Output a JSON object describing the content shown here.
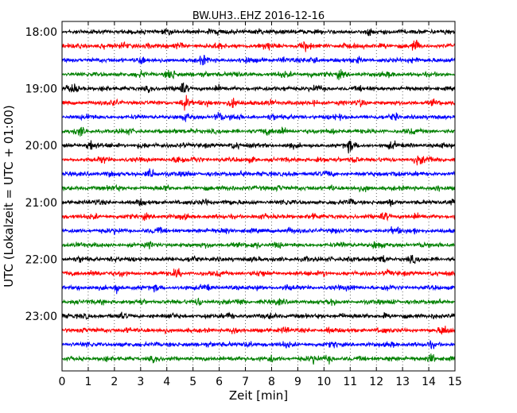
{
  "chart_data": {
    "type": "line",
    "title": "BW.UH3..EHZ 2016-12-16",
    "xlabel": "Zeit  [min]",
    "ylabel": "UTC (Lokalzeit = UTC + 01:00)",
    "xlim": [
      0,
      15
    ],
    "x_ticks": [
      "0",
      "1",
      "2",
      "3",
      "4",
      "5",
      "6",
      "7",
      "8",
      "9",
      "10",
      "11",
      "12",
      "13",
      "14",
      "15"
    ],
    "y_tick_labels": [
      "18:00",
      "19:00",
      "20:00",
      "21:00",
      "22:00",
      "23:00"
    ],
    "grid": "vertical-dotted",
    "trace_colors": [
      "#000000",
      "#ff0000",
      "#0000ff",
      "#008000"
    ],
    "traces": [
      {
        "start": "18:00",
        "bursts": [
          [
            4.0,
            0.6
          ],
          [
            5.6,
            0.5
          ],
          [
            6.0,
            0.6
          ],
          [
            7.5,
            0.7
          ],
          [
            9.2,
            0.4
          ],
          [
            11.7,
            0.6
          ],
          [
            13.0,
            0.7
          ],
          [
            14.7,
            0.6
          ]
        ]
      },
      {
        "start": "18:15",
        "bursts": [
          [
            1.5,
            0.6
          ],
          [
            2.3,
            0.8
          ],
          [
            3.3,
            0.5
          ],
          [
            4.5,
            0.7
          ],
          [
            6.0,
            0.7
          ],
          [
            7.8,
            1.0
          ],
          [
            9.3,
            1.2
          ],
          [
            10.7,
            0.7
          ],
          [
            12.3,
            0.5
          ],
          [
            13.5,
            1.2
          ]
        ]
      },
      {
        "start": "18:30",
        "bursts": [
          [
            3.0,
            1.1
          ],
          [
            5.4,
            1.0
          ],
          [
            7.0,
            0.7
          ],
          [
            8.5,
            0.6
          ],
          [
            9.6,
            1.0
          ],
          [
            11.3,
            0.6
          ],
          [
            13.5,
            0.8
          ]
        ]
      },
      {
        "start": "18:45",
        "bursts": [
          [
            3.0,
            0.6
          ],
          [
            4.15,
            1.6
          ],
          [
            5.5,
            0.6
          ],
          [
            6.7,
            0.5
          ],
          [
            8.5,
            0.6
          ],
          [
            9.5,
            0.6
          ],
          [
            10.6,
            0.8
          ],
          [
            12.5,
            0.5
          ]
        ]
      },
      {
        "start": "19:00",
        "bursts": [
          [
            0.4,
            1.3
          ],
          [
            1.6,
            0.6
          ],
          [
            3.3,
            0.7
          ],
          [
            4.6,
            1.8
          ],
          [
            6.0,
            0.6
          ],
          [
            8.6,
            0.5
          ],
          [
            9.7,
            0.7
          ],
          [
            11.5,
            0.5
          ]
        ]
      },
      {
        "start": "19:15",
        "bursts": [
          [
            2.0,
            0.6
          ],
          [
            4.7,
            2.0
          ],
          [
            5.6,
            0.6
          ],
          [
            6.5,
            1.2
          ],
          [
            8.0,
            0.7
          ],
          [
            9.6,
            0.5
          ],
          [
            11.4,
            0.8
          ],
          [
            14.2,
            0.5
          ]
        ]
      },
      {
        "start": "19:30",
        "bursts": [
          [
            1.0,
            0.6
          ],
          [
            4.8,
            0.8
          ],
          [
            6.0,
            1.2
          ],
          [
            6.6,
            0.8
          ],
          [
            8.0,
            0.6
          ],
          [
            10.5,
            0.5
          ],
          [
            12.7,
            0.7
          ]
        ]
      },
      {
        "start": "19:45",
        "bursts": [
          [
            0.7,
            1.2
          ],
          [
            2.5,
            0.5
          ],
          [
            5.0,
            0.6
          ],
          [
            7.8,
            0.7
          ],
          [
            8.4,
            1.0
          ],
          [
            10.4,
            0.6
          ],
          [
            13.3,
            0.5
          ]
        ]
      },
      {
        "start": "20:00",
        "bursts": [
          [
            1.1,
            1.5
          ],
          [
            3.0,
            0.5
          ],
          [
            4.6,
            0.5
          ],
          [
            6.6,
            1.1
          ],
          [
            8.7,
            0.6
          ],
          [
            11.0,
            1.5
          ],
          [
            12.6,
            0.8
          ],
          [
            14.5,
            0.4
          ]
        ]
      },
      {
        "start": "20:15",
        "bursts": [
          [
            1.6,
            0.8
          ],
          [
            4.5,
            1.2
          ],
          [
            5.1,
            0.7
          ],
          [
            7.2,
            0.5
          ],
          [
            9.8,
            0.6
          ],
          [
            11.2,
            0.8
          ],
          [
            13.6,
            1.2
          ],
          [
            14.0,
            0.8
          ]
        ]
      },
      {
        "start": "20:30",
        "bursts": [
          [
            1.8,
            0.5
          ],
          [
            3.4,
            1.5
          ],
          [
            4.8,
            0.6
          ],
          [
            6.9,
            0.8
          ],
          [
            8.8,
            0.5
          ],
          [
            10.2,
            0.6
          ],
          [
            12.7,
            0.7
          ]
        ]
      },
      {
        "start": "20:45",
        "bursts": [
          [
            2.0,
            0.5
          ],
          [
            4.0,
            0.6
          ],
          [
            6.4,
            0.6
          ],
          [
            8.3,
            0.8
          ],
          [
            10.3,
            0.5
          ],
          [
            11.5,
            0.7
          ],
          [
            14.3,
            0.8
          ]
        ]
      },
      {
        "start": "21:00",
        "bursts": [
          [
            1.3,
            0.5
          ],
          [
            3.0,
            0.6
          ],
          [
            5.5,
            0.7
          ],
          [
            6.3,
            0.6
          ],
          [
            8.5,
            0.5
          ],
          [
            11.0,
            0.8
          ],
          [
            12.6,
            0.6
          ],
          [
            15.0,
            1.4
          ]
        ]
      },
      {
        "start": "21:15",
        "bursts": [
          [
            1.2,
            0.5
          ],
          [
            3.2,
            0.6
          ],
          [
            4.6,
            0.6
          ],
          [
            7.6,
            0.5
          ],
          [
            9.6,
            0.8
          ],
          [
            12.3,
            1.0
          ],
          [
            13.5,
            0.5
          ]
        ]
      },
      {
        "start": "21:30",
        "bursts": [
          [
            2.0,
            0.5
          ],
          [
            3.6,
            0.6
          ],
          [
            6.2,
            0.8
          ],
          [
            8.7,
            0.7
          ],
          [
            10.4,
            0.5
          ],
          [
            12.7,
            0.8
          ],
          [
            13.4,
            0.7
          ]
        ]
      },
      {
        "start": "21:45",
        "bursts": [
          [
            0.6,
            0.5
          ],
          [
            3.4,
            0.6
          ],
          [
            5.6,
            0.6
          ],
          [
            7.4,
            0.7
          ],
          [
            8.2,
            0.6
          ],
          [
            10.8,
            0.5
          ],
          [
            12.0,
            1.0
          ],
          [
            13.8,
            0.5
          ]
        ]
      },
      {
        "start": "22:00",
        "bursts": [
          [
            0.7,
            0.5
          ],
          [
            2.0,
            0.6
          ],
          [
            5.0,
            0.7
          ],
          [
            7.3,
            0.6
          ],
          [
            9.3,
            0.5
          ],
          [
            11.0,
            0.6
          ],
          [
            12.3,
            1.0
          ],
          [
            13.4,
            0.8
          ]
        ]
      },
      {
        "start": "22:15",
        "bursts": [
          [
            1.2,
            0.8
          ],
          [
            2.3,
            0.6
          ],
          [
            4.4,
            1.2
          ],
          [
            6.0,
            0.5
          ],
          [
            7.6,
            0.6
          ],
          [
            10.0,
            0.6
          ],
          [
            12.4,
            0.7
          ],
          [
            14.2,
            0.5
          ]
        ]
      },
      {
        "start": "22:30",
        "bursts": [
          [
            0.6,
            0.5
          ],
          [
            2.1,
            1.2
          ],
          [
            3.6,
            0.6
          ],
          [
            5.5,
            0.7
          ],
          [
            7.6,
            0.5
          ],
          [
            8.6,
            0.6
          ],
          [
            11.0,
            0.6
          ],
          [
            12.4,
            0.8
          ]
        ]
      },
      {
        "start": "22:45",
        "bursts": [
          [
            1.5,
            0.5
          ],
          [
            3.0,
            0.6
          ],
          [
            5.2,
            1.0
          ],
          [
            6.8,
            0.8
          ],
          [
            8.3,
            0.6
          ],
          [
            10.3,
            0.8
          ],
          [
            12.6,
            0.5
          ],
          [
            14.4,
            0.6
          ]
        ]
      },
      {
        "start": "23:00",
        "bursts": [
          [
            0.9,
            0.6
          ],
          [
            2.3,
            0.5
          ],
          [
            4.2,
            0.6
          ],
          [
            6.4,
            0.8
          ],
          [
            8.0,
            0.5
          ],
          [
            10.6,
            0.5
          ],
          [
            12.3,
            0.6
          ],
          [
            14.2,
            0.6
          ]
        ]
      },
      {
        "start": "23:15",
        "bursts": [
          [
            0.8,
            0.5
          ],
          [
            2.5,
            0.6
          ],
          [
            4.0,
            0.5
          ],
          [
            6.6,
            0.8
          ],
          [
            8.5,
            0.6
          ],
          [
            10.2,
            0.5
          ],
          [
            12.2,
            0.6
          ],
          [
            14.6,
            1.3
          ]
        ]
      },
      {
        "start": "23:30",
        "bursts": [
          [
            1.0,
            0.5
          ],
          [
            3.6,
            0.5
          ],
          [
            5.6,
            0.6
          ],
          [
            7.1,
            0.8
          ],
          [
            8.6,
            0.6
          ],
          [
            10.4,
            0.6
          ],
          [
            12.6,
            0.5
          ],
          [
            14.1,
            0.6
          ]
        ]
      },
      {
        "start": "23:45",
        "bursts": [
          [
            1.7,
            0.5
          ],
          [
            3.5,
            0.6
          ],
          [
            6.6,
            0.6
          ],
          [
            8.0,
            0.8
          ],
          [
            9.6,
            1.0
          ],
          [
            10.2,
            0.8
          ],
          [
            12.5,
            0.6
          ],
          [
            14.1,
            1.2
          ]
        ]
      }
    ]
  }
}
